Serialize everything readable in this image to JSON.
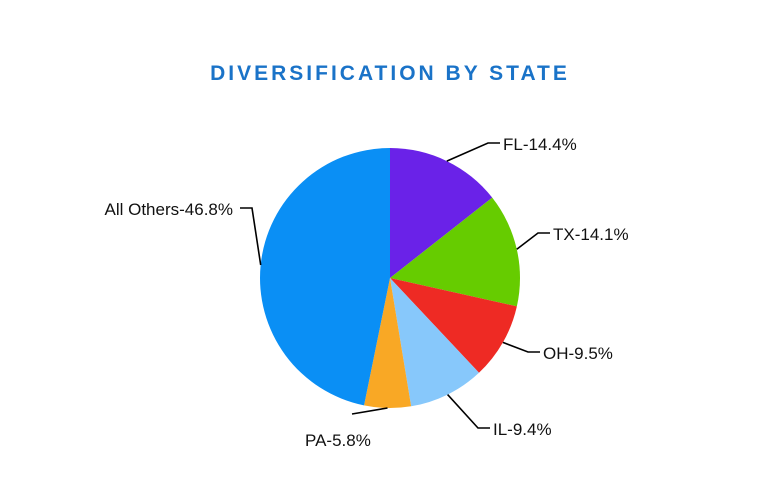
{
  "chart_data": {
    "type": "pie",
    "title": "DIVERSIFICATION BY STATE",
    "slices": [
      {
        "name": "FL",
        "label": "FL-14.4%",
        "value": 14.4,
        "color": "#6a22e8"
      },
      {
        "name": "TX",
        "label": "TX-14.1%",
        "value": 14.1,
        "color": "#66cc00"
      },
      {
        "name": "OH",
        "label": "OH-9.5%",
        "value": 9.5,
        "color": "#ee2a24"
      },
      {
        "name": "IL",
        "label": "IL-9.4%",
        "value": 9.4,
        "color": "#87c8fb"
      },
      {
        "name": "PA",
        "label": "PA-5.8%",
        "value": 5.8,
        "color": "#f9a825"
      },
      {
        "name": "All Others",
        "label": "All Others-46.8%",
        "value": 46.8,
        "color": "#0a8ff5"
      }
    ],
    "start_angle": "12 o'clock",
    "direction": "clockwise",
    "legend": "none"
  }
}
